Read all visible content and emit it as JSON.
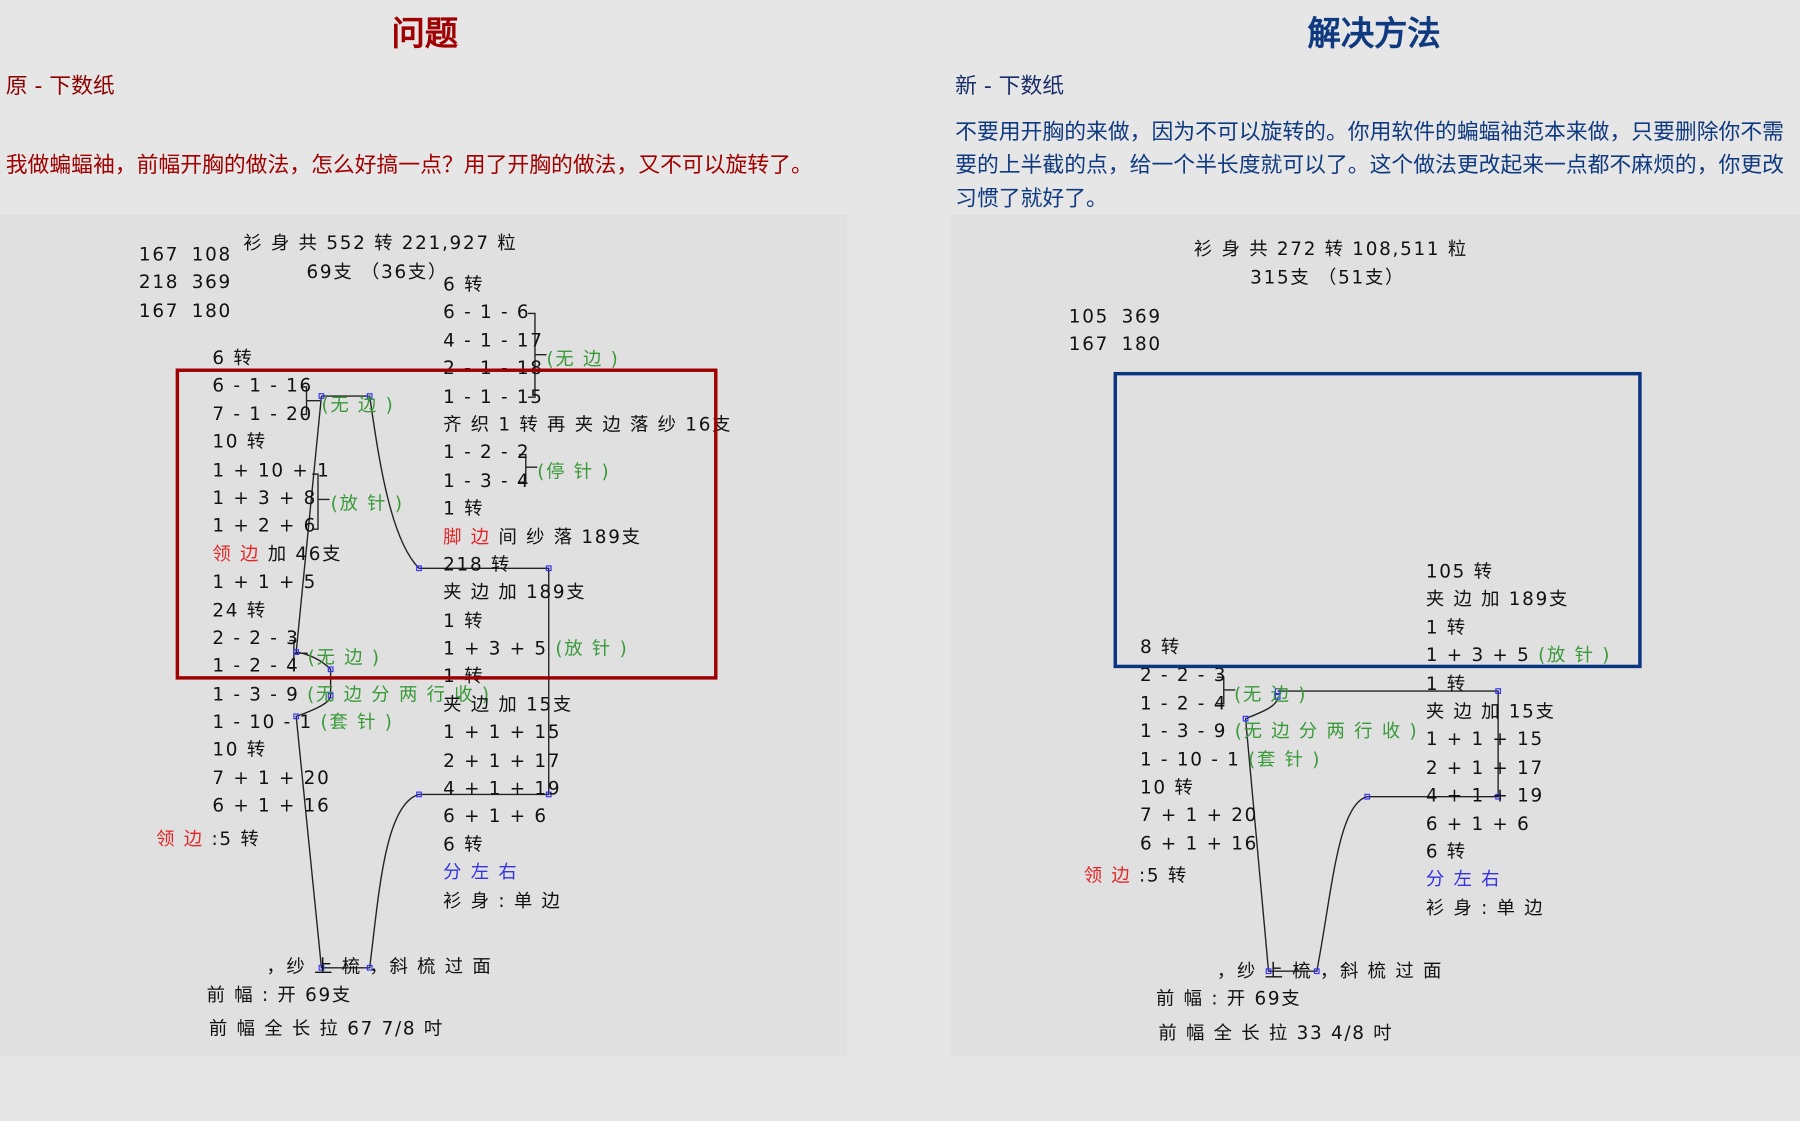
{
  "colors": {
    "problem": "#a00000",
    "solution": "#103a80",
    "note_green": "#3a9a3a",
    "note_red": "#e02828",
    "note_blue": "#3434e0"
  },
  "problem": {
    "title": "问题",
    "subtitle": "原 - 下数纸",
    "text": "我做蝙蝠袖，前幅开胸的做法，怎么好搞一点？用了开胸的做法，又不可以旋转了。",
    "summary_line1": "衫 身 共 552 转  221,927 粒",
    "summary_line2": "69支 （36支）",
    "numbers": [
      [
        "167",
        "108"
      ],
      [
        "218",
        "369"
      ],
      [
        "167",
        "180"
      ]
    ],
    "left_col": [
      [
        [
          "6 转",
          ""
        ]
      ],
      [
        [
          "6 - 1 - 16",
          ""
        ]
      ],
      [
        [
          "7 - 1 - 20",
          ""
        ]
      ],
      [
        [
          "10 转",
          ""
        ]
      ],
      [
        [
          "1 + 10 + 1",
          ""
        ]
      ],
      [
        [
          "1 + 3 + 8",
          ""
        ]
      ],
      [
        [
          "1 + 2 + 6",
          ""
        ]
      ],
      [
        [
          "领 边",
          "r"
        ],
        [
          " 加 46支",
          ""
        ]
      ],
      [
        [
          "1 + 1 + 5",
          ""
        ]
      ],
      [
        [
          "24 转",
          ""
        ]
      ],
      [
        [
          "2 - 2 - 3",
          ""
        ]
      ],
      [
        [
          "1 - 2 - 4",
          ""
        ]
      ],
      [
        [
          "1 - 3 - 9 ",
          ""
        ],
        [
          "(无 边 分 两 行 收 )",
          "g"
        ]
      ],
      [
        [
          "1 - 10 - 1 ",
          ""
        ],
        [
          "(套 针 )",
          "g"
        ]
      ],
      [
        [
          "10 转",
          ""
        ]
      ],
      [
        [
          "7 + 1 + 20",
          ""
        ]
      ],
      [
        [
          "6 + 1 + 16",
          ""
        ]
      ]
    ],
    "right_col": [
      [
        [
          "6 转",
          ""
        ]
      ],
      [
        [
          "6 - 1 - 6",
          ""
        ]
      ],
      [
        [
          "4 - 1 - 17",
          ""
        ]
      ],
      [
        [
          "2 - 1 - 18",
          ""
        ]
      ],
      [
        [
          "1 - 1 - 15",
          ""
        ]
      ],
      [
        [
          "齐 织 1 转 再 夹 边 落 纱 16支",
          ""
        ]
      ],
      [
        [
          "1 - 2 - 2",
          ""
        ]
      ],
      [
        [
          "1 - 3 - 4",
          ""
        ]
      ],
      [
        [
          "1 转",
          ""
        ]
      ],
      [
        [
          "脚 边",
          "r"
        ],
        [
          " 间 纱 落 189支",
          ""
        ]
      ],
      [
        [
          "218 转",
          ""
        ]
      ],
      [
        [
          "夹 边 加 189支",
          ""
        ]
      ],
      [
        [
          "1 转",
          ""
        ]
      ],
      [
        [
          "1 + 3 + 5 ",
          ""
        ],
        [
          "(放 针 )",
          "g"
        ]
      ],
      [
        [
          "1 转",
          ""
        ]
      ],
      [
        [
          "夹 边 加 15支",
          ""
        ]
      ],
      [
        [
          "1 + 1 + 15",
          ""
        ]
      ],
      [
        [
          "2 + 1 + 17",
          ""
        ]
      ],
      [
        [
          "4 + 1 + 19",
          ""
        ]
      ],
      [
        [
          "6 + 1 + 6",
          ""
        ]
      ],
      [
        [
          "6 转",
          ""
        ]
      ],
      [
        [
          "分 左 右",
          "b"
        ]
      ],
      [
        [
          "衫 身 : 单 边",
          ""
        ]
      ]
    ],
    "bracket_notes": [
      "(无 边 )",
      "(无 边 )",
      "(放 针 )",
      "(停 针 )",
      "(无 边 )"
    ],
    "neck_label": "领 边",
    "neck_value": " :5 转",
    "bottom_line1": "，纱 上 梳 ，斜 梳 过 面",
    "bottom_line2": "前 幅 :   开  69支",
    "bottom_line3": "前 幅 全 长 拉  67 7/8 吋"
  },
  "solution": {
    "title": "解决方法",
    "subtitle": "新 - 下数纸",
    "text": "不要用开胸的来做，因为不可以旋转的。你用软件的蝙蝠袖范本来做，只要删除你不需要的上半截的点，给一个半长度就可以了。这个做法更改起来一点都不麻烦的，你更改习惯了就好了。",
    "summary_line1": "衫 身 共 272 转  108,511 粒",
    "summary_line2": "315支 （51支）",
    "numbers": [
      [
        "105",
        "369"
      ],
      [
        "167",
        "180"
      ]
    ],
    "left_col": [
      [
        [
          "8 转",
          ""
        ]
      ],
      [
        [
          "2 - 2 - 3",
          ""
        ]
      ],
      [
        [
          "1 - 2 - 4",
          ""
        ]
      ],
      [
        [
          "1 - 3 - 9 ",
          ""
        ],
        [
          "(无 边 分 两 行 收 )",
          "g"
        ]
      ],
      [
        [
          "1 - 10 - 1 ",
          ""
        ],
        [
          "(套 针 )",
          "g"
        ]
      ],
      [
        [
          "10 转",
          ""
        ]
      ],
      [
        [
          "7 + 1 + 20",
          ""
        ]
      ],
      [
        [
          "6 + 1 + 16",
          ""
        ]
      ]
    ],
    "right_col": [
      [
        [
          "105 转",
          ""
        ]
      ],
      [
        [
          "夹 边 加 189支",
          ""
        ]
      ],
      [
        [
          "1 转",
          ""
        ]
      ],
      [
        [
          "1 + 3 + 5 ",
          ""
        ],
        [
          "(放 针 )",
          "g"
        ]
      ],
      [
        [
          "1 转",
          ""
        ]
      ],
      [
        [
          "夹 边 加 15支",
          ""
        ]
      ],
      [
        [
          "1 + 1 + 15",
          ""
        ]
      ],
      [
        [
          "2 + 1 + 17",
          ""
        ]
      ],
      [
        [
          "4 + 1 + 19",
          ""
        ]
      ],
      [
        [
          "6 + 1 + 6",
          ""
        ]
      ],
      [
        [
          "6 转",
          ""
        ]
      ],
      [
        [
          "分 左 右",
          "b"
        ]
      ],
      [
        [
          "衫 身 : 单 边",
          ""
        ]
      ]
    ],
    "bracket_notes": [
      "(无 边 )"
    ],
    "neck_label": "领 边",
    "neck_value": " :5 转",
    "bottom_line1": "，纱 上 梳 ，斜 梳 过 面",
    "bottom_line2": "前 幅 :   开  69支",
    "bottom_line3": "前 幅 全 长 拉  33 4/8 吋"
  }
}
